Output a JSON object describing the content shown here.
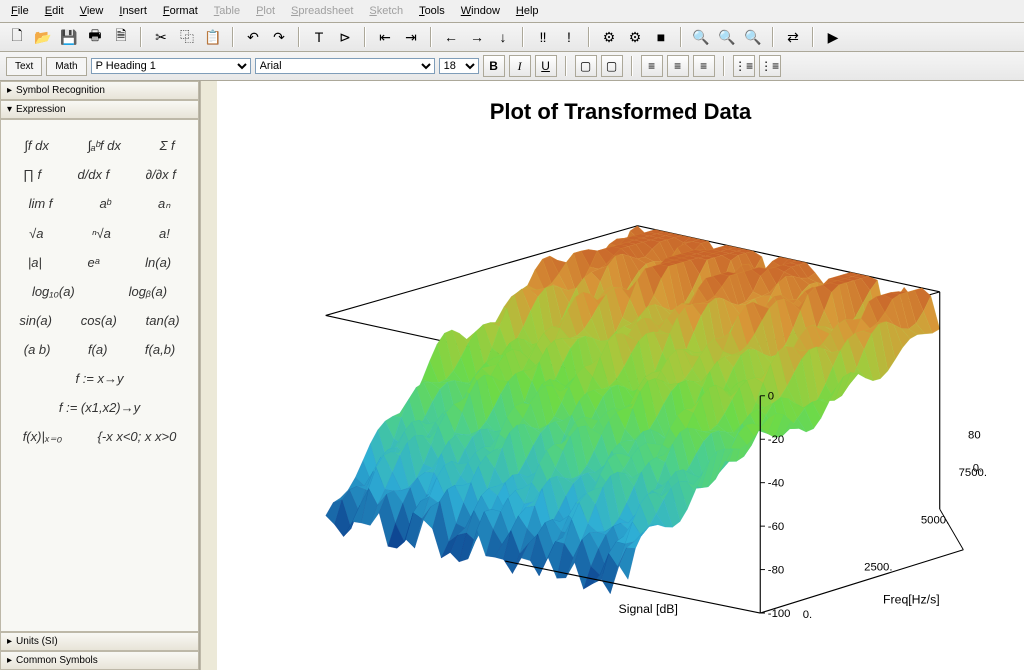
{
  "menu": {
    "items": [
      "File",
      "Edit",
      "View",
      "Insert",
      "Format",
      "Table",
      "Plot",
      "Spreadsheet",
      "Sketch",
      "Tools",
      "Window",
      "Help"
    ],
    "disabled": [
      5,
      6,
      7,
      8
    ]
  },
  "toolbar1_icons": [
    "new",
    "open",
    "save",
    "print",
    "preview",
    "cut",
    "copy",
    "paste",
    "undo",
    "redo",
    "text-t",
    "text-p",
    "indent-l",
    "indent-r",
    "arrow-l",
    "arrow-r",
    "arrow-d",
    "excl2",
    "excl1",
    "gear",
    "gear-run",
    "stop",
    "zoom-in",
    "zoom-out",
    "zoom-fit",
    "transform",
    "execute"
  ],
  "toolbar1_groups": [
    5,
    3,
    2,
    2,
    2,
    3,
    2,
    3,
    3,
    1,
    1
  ],
  "format_bar": {
    "tabs": [
      "Text",
      "Math"
    ],
    "style_select": "P Heading 1",
    "font_select": "Arial",
    "size_select": "18",
    "bold": "B",
    "italic": "I",
    "underline": "U"
  },
  "sidebar": {
    "panels": [
      "Symbol Recognition",
      "Expression",
      "Units (SI)",
      "Common Symbols"
    ],
    "expression_rows": [
      [
        "∫f dx",
        "∫ₐᵇf dx",
        "Σ f"
      ],
      [
        "∏ f",
        "d/dx f",
        "∂/∂x f"
      ],
      [
        "lim f",
        "aᵇ",
        "aₙ"
      ],
      [
        "√a",
        "ⁿ√a",
        "a!"
      ],
      [
        "|a|",
        "eᵃ",
        "ln(a)"
      ],
      [
        "log₁₀(a)",
        "logᵦ(a)",
        ""
      ],
      [
        "sin(a)",
        "cos(a)",
        "tan(a)"
      ],
      [
        "(a b)",
        "f(a)",
        "f(a,b)"
      ],
      [
        "",
        "f := x→y",
        ""
      ],
      [
        "",
        "f := (x1,x2)→y",
        ""
      ],
      [
        "f(x)|ₓ₌₀",
        "{-x x<0; x x>0",
        ""
      ]
    ]
  },
  "plot": {
    "title": "Plot of Transformed Data",
    "x_label": "Signal [dB]",
    "y_label": "Freq[Hz/s]",
    "z_ticks": [
      "0",
      "-20",
      "-40",
      "-60",
      "-80",
      "-100"
    ],
    "z_values": [
      0,
      -20,
      -40,
      -60,
      -80,
      -100
    ],
    "y_ticks": [
      "0.",
      "2500.",
      "5000.",
      "7500."
    ],
    "x_far_ticks": [
      "80",
      "0."
    ],
    "colormap": {
      "low": "#0a3a8a",
      "mid1": "#2eaed6",
      "mid2": "#4dd08a",
      "mid3": "#6eda46",
      "high1": "#a8c83c",
      "high2": "#d89838",
      "high3": "#c8642a"
    },
    "frame_color": "#000000",
    "grid_color": "#d0d0d0",
    "background": "#ffffff"
  }
}
